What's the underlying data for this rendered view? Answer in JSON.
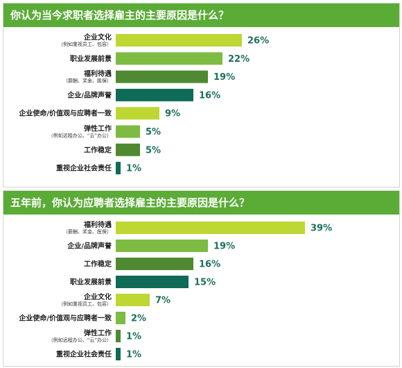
{
  "colors": {
    "header_bg": "#5bab37",
    "bar_palette": [
      "#bed733",
      "#7dbb42",
      "#4f8a32",
      "#0f6b55"
    ],
    "value_text": "#1e6f5e"
  },
  "chart_data": [
    {
      "type": "bar",
      "orientation": "horizontal",
      "title": "你认为当今求职者选择雇主的主要原因是什么？",
      "categories": [
        {
          "label": "企业文化",
          "sub": "（例如重视员工、包容）"
        },
        {
          "label": "职业发展前景",
          "sub": ""
        },
        {
          "label": "福利待遇",
          "sub": "（薪酬、奖金、医保）"
        },
        {
          "label": "企业/品牌声誉",
          "sub": ""
        },
        {
          "label": "企业使命/价值观与应聘者一致",
          "sub": ""
        },
        {
          "label": "弹性工作",
          "sub": "（例如远程办公、“云”办公）"
        },
        {
          "label": "工作稳定",
          "sub": ""
        },
        {
          "label": "重视企业社会责任",
          "sub": ""
        }
      ],
      "values": [
        26,
        22,
        19,
        16,
        9,
        5,
        5,
        1
      ],
      "value_labels": [
        "26%",
        "22%",
        "19%",
        "16%",
        "9%",
        "5%",
        "5%",
        "1%"
      ],
      "unit": "%",
      "xlim": [
        0,
        42
      ],
      "grid": false,
      "legend": "none"
    },
    {
      "type": "bar",
      "orientation": "horizontal",
      "title": "五年前，你认为应聘者选择雇主的主要原因是什么？",
      "categories": [
        {
          "label": "福利待遇",
          "sub": "（薪酬、奖金、医保）"
        },
        {
          "label": "企业/品牌声誉",
          "sub": ""
        },
        {
          "label": "工作稳定",
          "sub": ""
        },
        {
          "label": "职业发展前景",
          "sub": ""
        },
        {
          "label": "企业文化",
          "sub": "（例如重视员工、包容）"
        },
        {
          "label": "企业使命/价值观与应聘者一致",
          "sub": ""
        },
        {
          "label": "弹性工作",
          "sub": "（例如远程办公、“云”办公）"
        },
        {
          "label": "重视企业社会责任",
          "sub": ""
        }
      ],
      "values": [
        39,
        19,
        16,
        15,
        7,
        2,
        1,
        1
      ],
      "value_labels": [
        "39%",
        "19%",
        "16%",
        "15%",
        "7%",
        "2%",
        "1%",
        "1%"
      ],
      "unit": "%",
      "xlim": [
        0,
        42
      ],
      "grid": false,
      "legend": "none"
    }
  ]
}
